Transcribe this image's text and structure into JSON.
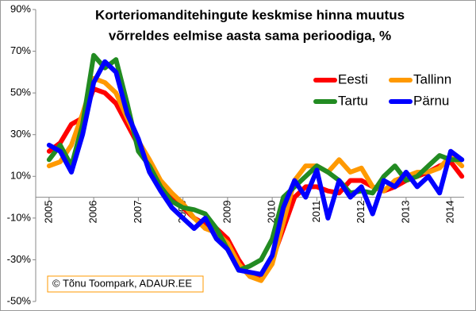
{
  "chart_data": {
    "type": "line",
    "title": [
      "Korteriomanditehingute keskmise hinna muutus",
      "võrreldes eelmise aasta sama perioodiga, %"
    ],
    "credit": "© Tõnu Toompark, ADAUR.EE",
    "x": [
      2005,
      2005.25,
      2005.5,
      2005.75,
      2006,
      2006.25,
      2006.5,
      2006.75,
      2007,
      2007.25,
      2007.5,
      2007.75,
      2008,
      2008.25,
      2008.5,
      2008.75,
      2009,
      2009.25,
      2009.5,
      2009.75,
      2010,
      2010.25,
      2010.5,
      2010.75,
      2011,
      2011.25,
      2011.5,
      2011.75,
      2012,
      2012.25,
      2012.5,
      2012.75,
      2013,
      2013.25,
      2013.5,
      2013.75,
      2014,
      2014.25
    ],
    "series": [
      {
        "name": "Eesti",
        "color": "#ff0000",
        "values": [
          22,
          26,
          35,
          38,
          52,
          50,
          45,
          35,
          25,
          15,
          5,
          0,
          -5,
          -10,
          -13,
          -15,
          -20,
          -30,
          -38,
          -38,
          -30,
          -15,
          0,
          5,
          5,
          3,
          2,
          8,
          8,
          5,
          3,
          5,
          8,
          10,
          12,
          15,
          17,
          10
        ]
      },
      {
        "name": "Tallinn",
        "color": "#ff9900",
        "values": [
          15,
          17,
          25,
          40,
          57,
          55,
          50,
          38,
          27,
          18,
          8,
          2,
          -3,
          -10,
          -15,
          -17,
          -22,
          -32,
          -38,
          -40,
          -32,
          -12,
          8,
          15,
          15,
          12,
          18,
          12,
          14,
          5,
          3,
          8,
          10,
          12,
          12,
          14,
          20,
          15
        ]
      },
      {
        "name": "Tartu",
        "color": "#228b22",
        "values": [
          18,
          25,
          15,
          35,
          68,
          62,
          66,
          45,
          22,
          15,
          5,
          -2,
          -5,
          -6,
          -8,
          -15,
          -25,
          -35,
          -33,
          -30,
          -20,
          0,
          5,
          10,
          15,
          12,
          8,
          2,
          3,
          2,
          10,
          15,
          8,
          10,
          15,
          20,
          18,
          18
        ]
      },
      {
        "name": "Pärnu",
        "color": "#0000ff",
        "values": [
          25,
          22,
          12,
          30,
          55,
          65,
          60,
          40,
          28,
          12,
          3,
          -5,
          -10,
          -15,
          -10,
          -20,
          -25,
          -35,
          -36,
          -37,
          -28,
          -5,
          8,
          0,
          13,
          -10,
          8,
          0,
          5,
          -8,
          8,
          5,
          12,
          5,
          10,
          2,
          22,
          18
        ]
      }
    ],
    "xlim": [
      2004.7,
      2014.3
    ],
    "xticks": [
      2005,
      2006,
      2007,
      2008,
      2009,
      2010,
      2011,
      2012,
      2013,
      2014
    ],
    "ylim": [
      -50,
      90
    ],
    "yticks": [
      {
        "value": -50,
        "label": "-50%"
      },
      {
        "value": -30,
        "label": "-30%"
      },
      {
        "value": -10,
        "label": "-10%"
      },
      {
        "value": 10,
        "label": "10%"
      },
      {
        "value": 30,
        "label": "30%"
      },
      {
        "value": 50,
        "label": "50%"
      },
      {
        "value": 70,
        "label": "70%"
      },
      {
        "value": 90,
        "label": "90%"
      }
    ]
  }
}
